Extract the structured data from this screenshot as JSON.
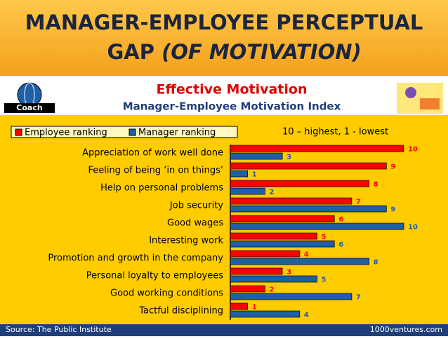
{
  "header": {
    "title_line1": "MANAGER-EMPLOYEE PERCEPTUAL",
    "title_line2": "GAP",
    "title_line2_italic": "(OF MOTIVATION)",
    "logo": "Coach"
  },
  "chart_data": {
    "type": "bar",
    "orientation": "horizontal",
    "title": "Effective Motivation",
    "subtitle": "Manager-Employee Motivation Index",
    "annotation": "10 – highest, 1 - lowest",
    "categories": [
      "Appreciation of work well done",
      "Feeling of being ‘in on things’",
      "Help on personal problems",
      "Job security",
      "Good wages",
      "Interesting work",
      "Promotion and growth in the company",
      "Personal loyalty to employees",
      "Good working conditions",
      "Tactful disciplining"
    ],
    "series": [
      {
        "name": "Employee ranking",
        "color": "#ff0000",
        "values": [
          10,
          9,
          8,
          7,
          6,
          5,
          4,
          3,
          2,
          1
        ]
      },
      {
        "name": "Manager ranking",
        "color": "#1f5fa8",
        "values": [
          3,
          1,
          2,
          9,
          10,
          6,
          8,
          5,
          7,
          4
        ]
      }
    ],
    "xlim": [
      0,
      10
    ],
    "source": "Source: The Public Institute",
    "credit": "1000ventures.com"
  }
}
